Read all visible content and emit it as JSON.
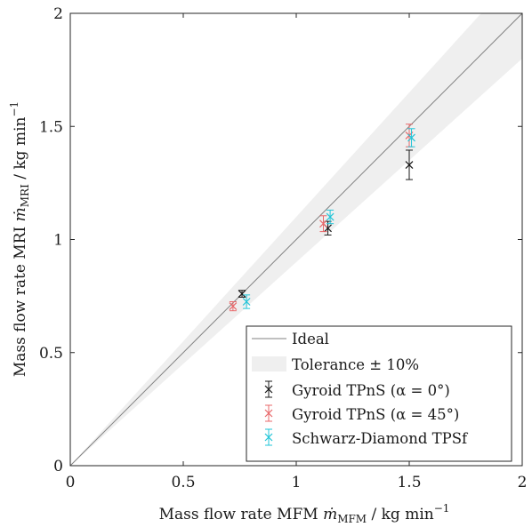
{
  "chart_data": {
    "type": "scatter",
    "title": "",
    "xlabel": {
      "prefix": "Mass flow rate MFM ",
      "symbol": "ṁ",
      "subscript": "MFM",
      "unit_text": " / kg min",
      "unit_exp": "−1"
    },
    "ylabel": {
      "prefix": "Mass flow rate MRI ",
      "symbol": "ṁ",
      "subscript": "MRI",
      "unit_text": " / kg min",
      "unit_exp": "−1"
    },
    "xlim": [
      0,
      2
    ],
    "ylim": [
      0,
      2
    ],
    "xticks": [
      {
        "v": 0,
        "label": "0"
      },
      {
        "v": 0.5,
        "label": "0.5"
      },
      {
        "v": 1,
        "label": "1"
      },
      {
        "v": 1.5,
        "label": "1.5"
      },
      {
        "v": 2,
        "label": "2"
      }
    ],
    "yticks": [
      {
        "v": 0,
        "label": "0"
      },
      {
        "v": 0.5,
        "label": "0.5"
      },
      {
        "v": 1,
        "label": "1"
      },
      {
        "v": 1.5,
        "label": "1.5"
      },
      {
        "v": 2,
        "label": "2"
      }
    ],
    "grid": false,
    "legend_position": "bottom-right",
    "ideal_line": {
      "name": "Ideal",
      "color": "#808080",
      "x": [
        0,
        2
      ],
      "y": [
        0,
        2
      ]
    },
    "tolerance_band": {
      "name": "Tolerance ± 10%",
      "fraction": 0.1,
      "color": "#efefef"
    },
    "series": [
      {
        "name": "Gyroid TPnS (α = 0°)",
        "color": "#1a1a1a",
        "marker": "x",
        "points": [
          {
            "x": 0.76,
            "y": 0.76,
            "err": 0.015
          },
          {
            "x": 1.14,
            "y": 1.05,
            "err": 0.03
          },
          {
            "x": 1.5,
            "y": 1.33,
            "err": 0.065
          }
        ]
      },
      {
        "name": "Gyroid TPnS (α = 45°)",
        "color": "#e8696b",
        "marker": "x",
        "points": [
          {
            "x": 0.72,
            "y": 0.705,
            "err": 0.02
          },
          {
            "x": 1.12,
            "y": 1.07,
            "err": 0.035
          },
          {
            "x": 1.5,
            "y": 1.46,
            "err": 0.05
          }
        ]
      },
      {
        "name": "Schwarz-Diamond TPSf",
        "color": "#22c5d8",
        "marker": "x",
        "points": [
          {
            "x": 0.78,
            "y": 0.725,
            "err": 0.03
          },
          {
            "x": 1.15,
            "y": 1.1,
            "err": 0.03
          },
          {
            "x": 1.51,
            "y": 1.45,
            "err": 0.04
          }
        ]
      }
    ]
  }
}
